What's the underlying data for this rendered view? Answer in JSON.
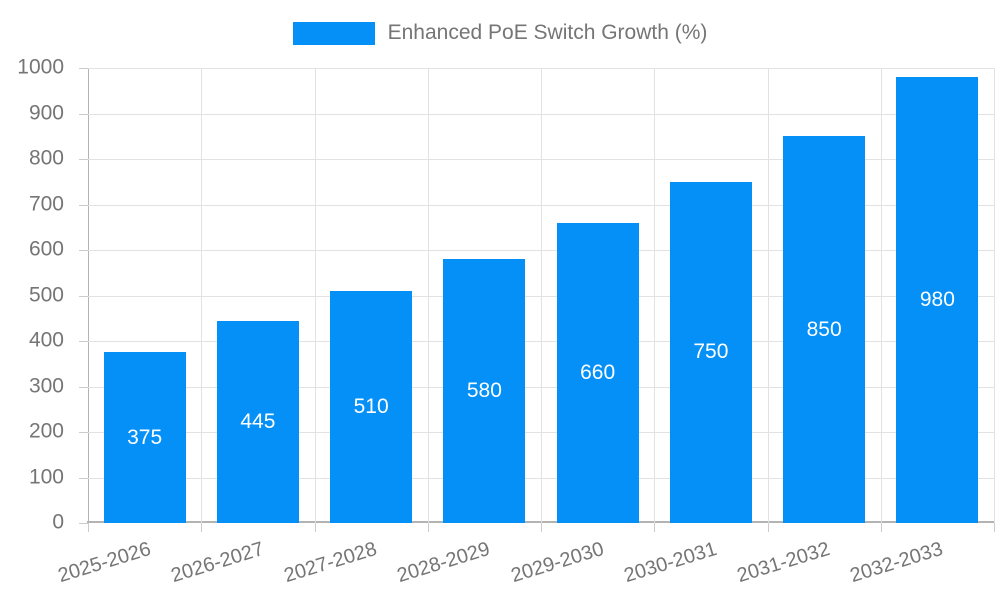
{
  "legend": {
    "label": "Enhanced PoE Switch Growth (%)"
  },
  "colors": {
    "bar": "#0590f8",
    "grid": "#e2e2e2",
    "axis": "#b3b3b3",
    "tick_mark": "#cccccc",
    "tick_text": "#757575",
    "value_label_text": "#ffffff",
    "background": "#ffffff"
  },
  "chart_data": {
    "type": "bar",
    "title": "Enhanced PoE Switch Growth (%)",
    "categories": [
      "2025-2026",
      "2026-2027",
      "2027-2028",
      "2028-2029",
      "2029-2030",
      "2030-2031",
      "2031-2032",
      "2032-2033"
    ],
    "values": [
      375,
      445,
      510,
      580,
      660,
      750,
      850,
      980
    ],
    "xlabel": "",
    "ylabel": "",
    "ylim": [
      0,
      1000
    ],
    "ytick_step": 100,
    "grid": true,
    "legend_position": "top-center",
    "bar_label_position": "middle",
    "x_label_rotation_deg": -17
  }
}
